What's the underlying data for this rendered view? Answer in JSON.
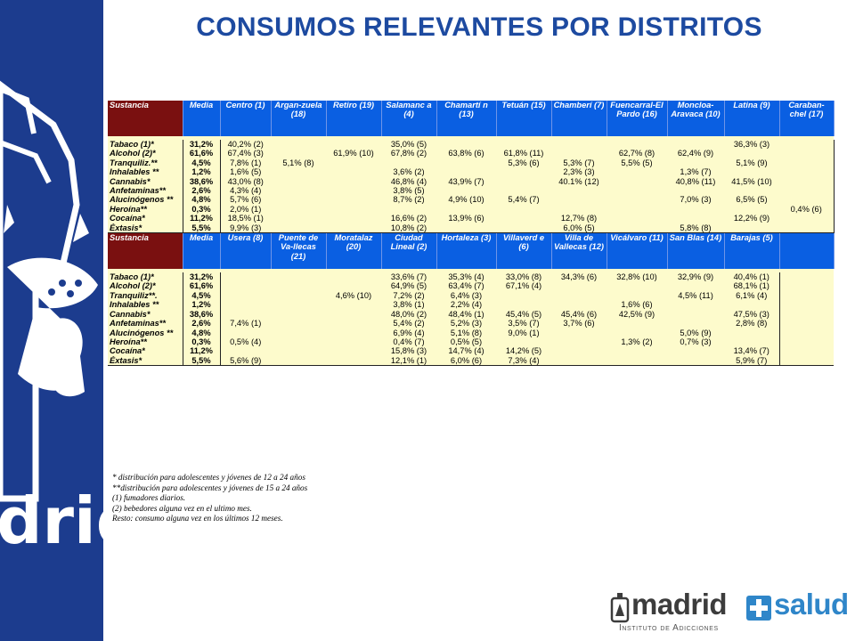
{
  "title": "CONSUMOS RELEVANTES POR DISTRITOS",
  "sidebar": {
    "text": "drid",
    "color": "#1c3c8e"
  },
  "table1": {
    "headers": [
      "Sustancia",
      "Media",
      "Centro (1)",
      "Argan-zuela (18)",
      "Retiro (19)",
      "Salamanc a (4)",
      "Chamartí n (13)",
      "Tetuán (15)",
      "Chamberí (7)",
      "Fuencarral-El Pardo (16)",
      "Moncloa-Aravaca (10)",
      "Latina (9)",
      "Caraban-chel (17)"
    ],
    "rows": [
      [
        "Tabaco (1)*",
        "31,2%",
        "40,2% (2)",
        "",
        "",
        "35,0% (5)",
        "",
        "",
        "",
        "",
        "",
        "36,3% (3)",
        ""
      ],
      [
        "Alcohol (2)*",
        "61,6%",
        "67,4% (3)",
        "",
        "61,9% (10)",
        "67,8% (2)",
        "63,8% (6)",
        "61,8% (11)",
        "",
        "62,7% (8)",
        "62,4% (9)",
        "",
        ""
      ],
      [
        "Tranquiliz.**",
        "4,5%",
        "7,8% (1)",
        "5,1% (8)",
        "",
        "",
        "",
        "5,3% (6)",
        "5,3% (7)",
        "5,5% (5)",
        "",
        "5,1% (9)",
        ""
      ],
      [
        "Inhalables **",
        "1,2%",
        "1,6% (5)",
        "",
        "",
        "3,6% (2)",
        "",
        "",
        "2,3% (3)",
        "",
        "1,3% (7)",
        "",
        ""
      ],
      [
        "Cannabis*",
        "38,6%",
        "43,0% (8)",
        "",
        "",
        "46,8% (4)",
        "43,9% (7)",
        "",
        "40.1% (12)",
        "",
        "40,8% (11)",
        "41,5% (10)",
        ""
      ],
      [
        "Anfetaminas**",
        "2,6%",
        "4,3% (4)",
        "",
        "",
        "3,8% (5)",
        "",
        "",
        "",
        "",
        "",
        "",
        ""
      ],
      [
        "Alucinógenos **",
        "4,8%",
        "5,7% (6)",
        "",
        "",
        "8,7% (2)",
        "4,9% (10)",
        "5,4% (7)",
        "",
        "",
        "7,0% (3)",
        "6,5% (5)",
        ""
      ],
      [
        "Heroína**",
        "0,3%",
        "2,0% (1)",
        "",
        "",
        "",
        "",
        "",
        "",
        "",
        "",
        "",
        "0,4% (6)"
      ],
      [
        "Cocaína*",
        "11,2%",
        "18,5% (1)",
        "",
        "",
        "16,6% (2)",
        "13,9% (6)",
        "",
        "12,7% (8)",
        "",
        "",
        "12,2% (9)",
        ""
      ],
      [
        "Éxtasis*",
        "5,5%",
        "9,9% (3)",
        "",
        "",
        "10,8% (2)",
        "",
        "",
        "6,0% (5)",
        "",
        "5,8% (8)",
        "",
        ""
      ]
    ]
  },
  "table2": {
    "headers": [
      "Sustancia",
      "Media",
      "Usera (8)",
      "Puente de Va-llecas (21)",
      "Moratalaz (20)",
      "Ciudad Lineal (2)",
      "Hortaleza (3)",
      "Villaverd e (6)",
      "Villa de Vallecas (12)",
      "Vicálvaro (11)",
      "San Blas (14)",
      "Barajas (5)"
    ],
    "rows": [
      [
        "Tabaco (1)*",
        "31,2%",
        "",
        "",
        "",
        "33,6% (7)",
        "35,3% (4)",
        "33,0% (8)",
        "34,3% (6)",
        "32,8% (10)",
        "32,9% (9)",
        "40,4% (1)"
      ],
      [
        "Alcohol (2)*",
        "61,6%",
        "",
        "",
        "",
        "64,9% (5)",
        "63,4% (7)",
        "67,1% (4)",
        "",
        "",
        "",
        "68,1% (1)"
      ],
      [
        "Tranquiliz**.",
        "4,5%",
        "",
        "",
        "4,6% (10)",
        "7,2% (2)",
        "6,4% (3)",
        "",
        "",
        "",
        "4,5% (11)",
        "6,1% (4)"
      ],
      [
        "Inhalables **",
        "1,2%",
        "",
        "",
        "",
        "3,8% (1)",
        "2,2% (4)",
        "",
        "",
        "1,6% (6)",
        "",
        ""
      ],
      [
        "Cannabis*",
        "38,6%",
        "",
        "",
        "",
        "48,0% (2)",
        "48,4% (1)",
        "45,4% (5)",
        "45,4% (6)",
        "42,5% (9)",
        "",
        "47,5% (3)"
      ],
      [
        "Anfetaminas**",
        "2,6%",
        "7,4% (1)",
        "",
        "",
        "5,4% (2)",
        "5,2% (3)",
        "3,5% (7)",
        "3,7% (6)",
        "",
        "",
        "2,8% (8)"
      ],
      [
        "Alucinógenos **",
        "4,8%",
        "",
        "",
        "",
        "6,9% (4)",
        "5,1% (8)",
        "9,0% (1)",
        "",
        "",
        "5,0% (9)",
        ""
      ],
      [
        "Heroína**",
        "0,3%",
        "0,5% (4)",
        "",
        "",
        "0,4% (7)",
        "0,5% (5)",
        "",
        "",
        "1,3% (2)",
        "0,7% (3)",
        ""
      ],
      [
        "Cocaína*",
        "11,2%",
        "",
        "",
        "",
        "15,8% (3)",
        "14,7% (4)",
        "14,2% (5)",
        "",
        "",
        "",
        "13,4% (7)"
      ],
      [
        "Éxtasis*",
        "5,5%",
        "5,6% (9)",
        "",
        "",
        "12,1% (1)",
        "6,0% (6)",
        "7,3% (4)",
        "",
        "",
        "",
        "5,9% (7)"
      ]
    ]
  },
  "notes": [
    "* distribución para adolescentes y jóvenes de 12 a 24 años",
    "**distribución para adolescentes y jóvenes de 15 a 24 años",
    "(1) fumadores diarios.",
    "(2) bebedores alguna vez en el ultimo mes.",
    "Resto: consumo alguna vez en los últimos 12 meses."
  ],
  "logo": {
    "madrid": "madrid",
    "salud": "salud",
    "subtitle": "Instituto de Adicciones"
  }
}
